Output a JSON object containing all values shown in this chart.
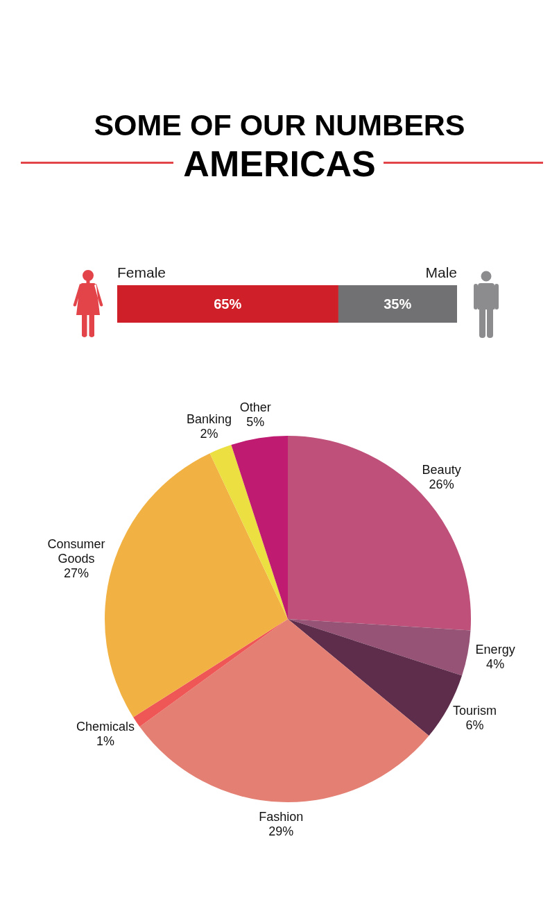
{
  "chart_data": [
    {
      "type": "bar",
      "title": "SOME OF OUR NUMBERS",
      "subtitle": "AMERICAS",
      "orientation": "horizontal",
      "stacked": true,
      "categories": [
        null
      ],
      "series": [
        {
          "name": "Female",
          "color": "#cf2029",
          "values": [
            65
          ],
          "value_labels": [
            "65%"
          ]
        },
        {
          "name": "Male",
          "color": "#717173",
          "values": [
            35
          ],
          "value_labels": [
            "35%"
          ]
        }
      ],
      "xlim": [
        0,
        100
      ],
      "tick_labels": false,
      "legend": false
    },
    {
      "type": "pie",
      "categories": [
        "Beauty",
        "Energy",
        "Tourism",
        "Fashion",
        "Chemicals",
        "Consumer Goods",
        "Banking",
        "Other"
      ],
      "values": [
        26,
        4,
        6,
        29,
        1,
        27,
        2,
        5
      ],
      "colors": [
        "#be5079",
        "#965376",
        "#5e2d4b",
        "#e48073",
        "#ef5656",
        "#f2b243",
        "#ebdf42",
        "#bf1b70"
      ],
      "value_labels": [
        "26%",
        "4%",
        "6%",
        "29%",
        "1%",
        "27%",
        "2%",
        "5%"
      ],
      "legend": false
    }
  ]
}
